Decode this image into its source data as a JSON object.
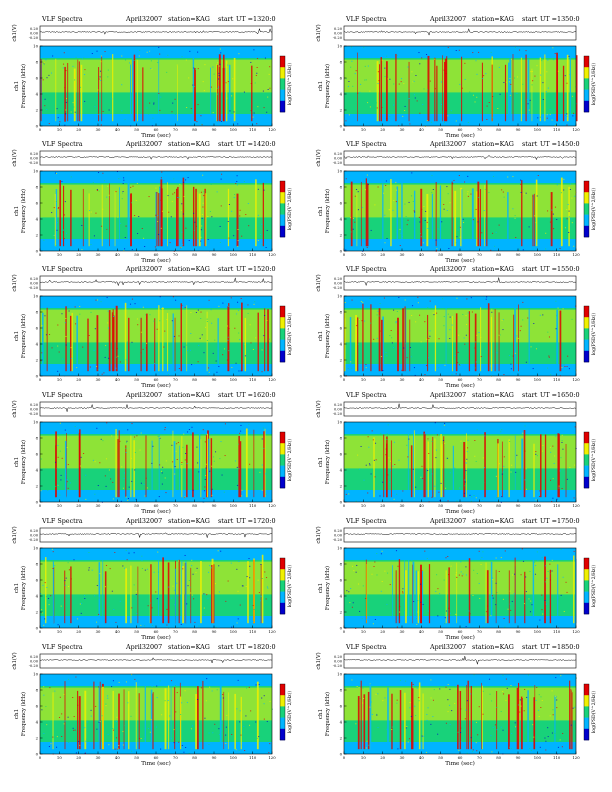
{
  "figure": {
    "colors": {
      "low": "#0000cc",
      "mid_low": "#00b4ff",
      "mid": "#18d27a",
      "mid_high": "#f0f000",
      "high": "#e00000",
      "wave_line": "#000000"
    }
  },
  "chart_data": [
    {
      "type": "heatmap",
      "title": "VLF Spectra",
      "date": "April32007",
      "station": "station=KAG",
      "start_label": "start",
      "ut": "UT =1320:0",
      "ylabel_top": "ch1(V)",
      "ylabel_main": "Frequency (kHz)",
      "ylabel_side": "ch1",
      "colorbar_label": "log(PSD(V^2/Hz))",
      "xlabel": "Time (sec)",
      "xlim": [
        0,
        120
      ],
      "ylim": [
        0,
        10
      ],
      "wave_yticks": [
        "0.20",
        "0.00",
        "-0.20"
      ],
      "x_ticks": [
        0,
        10,
        20,
        30,
        40,
        50,
        60,
        70,
        80,
        90,
        100,
        110,
        120
      ],
      "y_ticks": [
        0,
        2,
        4,
        6,
        8,
        10
      ]
    },
    {
      "type": "heatmap",
      "title": "VLF Spectra",
      "date": "April32007",
      "station": "station=KAG",
      "start_label": "start",
      "ut": "UT =1350:0",
      "ylabel_top": "ch1(V)",
      "ylabel_main": "Frequency (kHz)",
      "ylabel_side": "ch1",
      "colorbar_label": "log(PSD(V^2/Hz))",
      "xlabel": "Time (sec)",
      "xlim": [
        0,
        120
      ],
      "ylim": [
        0,
        10
      ],
      "wave_yticks": [
        "0.20",
        "0.00",
        "-0.20"
      ],
      "x_ticks": [
        0,
        10,
        20,
        30,
        40,
        50,
        60,
        70,
        80,
        90,
        100,
        110,
        120
      ],
      "y_ticks": [
        0,
        2,
        4,
        6,
        8,
        10
      ]
    },
    {
      "type": "heatmap",
      "title": "VLF Spectra",
      "date": "April32007",
      "station": "station=KAG",
      "start_label": "start",
      "ut": "UT =1420:0",
      "ylabel_top": "ch1(V)",
      "ylabel_main": "Frequency (kHz)",
      "ylabel_side": "ch1",
      "colorbar_label": "log(PSD(V^2/Hz))",
      "xlabel": "Time (sec)",
      "xlim": [
        0,
        120
      ],
      "ylim": [
        0,
        10
      ],
      "wave_yticks": [
        "0.20",
        "0.00",
        "-0.20"
      ],
      "x_ticks": [
        0,
        10,
        20,
        30,
        40,
        50,
        60,
        70,
        80,
        90,
        100,
        110,
        120
      ],
      "y_ticks": [
        0,
        2,
        4,
        6,
        8,
        10
      ]
    },
    {
      "type": "heatmap",
      "title": "VLF Spectra",
      "date": "April32007",
      "station": "station=KAG",
      "start_label": "start",
      "ut": "UT =1450:0",
      "ylabel_top": "ch1(V)",
      "ylabel_main": "Frequency (kHz)",
      "ylabel_side": "ch1",
      "colorbar_label": "log(PSD(V^2/Hz))",
      "xlabel": "Time (sec)",
      "xlim": [
        0,
        120
      ],
      "ylim": [
        0,
        10
      ],
      "wave_yticks": [
        "0.20",
        "0.00",
        "-0.20"
      ],
      "x_ticks": [
        0,
        10,
        20,
        30,
        40,
        50,
        60,
        70,
        80,
        90,
        100,
        110,
        120
      ],
      "y_ticks": [
        0,
        2,
        4,
        6,
        8,
        10
      ]
    },
    {
      "type": "heatmap",
      "title": "VLF Spectra",
      "date": "April32007",
      "station": "station=KAG",
      "start_label": "start",
      "ut": "UT =1520:0",
      "ylabel_top": "ch1(V)",
      "ylabel_main": "Frequency (kHz)",
      "ylabel_side": "ch1",
      "colorbar_label": "log(PSD(V^2/Hz))",
      "xlabel": "Time (sec)",
      "xlim": [
        0,
        120
      ],
      "ylim": [
        0,
        10
      ],
      "wave_yticks": [
        "0.20",
        "0.00",
        "-0.20"
      ],
      "x_ticks": [
        0,
        10,
        20,
        30,
        40,
        50,
        60,
        70,
        80,
        90,
        100,
        110,
        120
      ],
      "y_ticks": [
        0,
        2,
        4,
        6,
        8,
        10
      ]
    },
    {
      "type": "heatmap",
      "title": "VLF Spectra",
      "date": "April32007",
      "station": "station=KAG",
      "start_label": "start",
      "ut": "UT =1550:0",
      "ylabel_top": "ch1(V)",
      "ylabel_main": "Frequency (kHz)",
      "ylabel_side": "ch1",
      "colorbar_label": "log(PSD(V^2/Hz))",
      "xlabel": "Time (sec)",
      "xlim": [
        0,
        120
      ],
      "ylim": [
        0,
        10
      ],
      "wave_yticks": [
        "0.20",
        "0.00",
        "-0.20"
      ],
      "x_ticks": [
        0,
        10,
        20,
        30,
        40,
        50,
        60,
        70,
        80,
        90,
        100,
        110,
        120
      ],
      "y_ticks": [
        0,
        2,
        4,
        6,
        8,
        10
      ]
    },
    {
      "type": "heatmap",
      "title": "VLF Spectra",
      "date": "April32007",
      "station": "station=KAG",
      "start_label": "start",
      "ut": "UT =1620:0",
      "ylabel_top": "ch1(V)",
      "ylabel_main": "Frequency (kHz)",
      "ylabel_side": "ch1",
      "colorbar_label": "log(PSD(V^2/Hz))",
      "xlabel": "Time (sec)",
      "xlim": [
        0,
        120
      ],
      "ylim": [
        0,
        10
      ],
      "wave_yticks": [
        "0.20",
        "0.00",
        "-0.20"
      ],
      "x_ticks": [
        0,
        10,
        20,
        30,
        40,
        50,
        60,
        70,
        80,
        90,
        100,
        110,
        120
      ],
      "y_ticks": [
        0,
        2,
        4,
        6,
        8,
        10
      ]
    },
    {
      "type": "heatmap",
      "title": "VLF Spectra",
      "date": "April32007",
      "station": "station=KAG",
      "start_label": "start",
      "ut": "UT =1650:0",
      "ylabel_top": "ch1(V)",
      "ylabel_main": "Frequency (kHz)",
      "ylabel_side": "ch1",
      "colorbar_label": "log(PSD(V^2/Hz))",
      "xlabel": "Time (sec)",
      "xlim": [
        0,
        120
      ],
      "ylim": [
        0,
        10
      ],
      "wave_yticks": [
        "0.20",
        "0.00",
        "-0.20"
      ],
      "x_ticks": [
        0,
        10,
        20,
        30,
        40,
        50,
        60,
        70,
        80,
        90,
        100,
        110,
        120
      ],
      "y_ticks": [
        0,
        2,
        4,
        6,
        8,
        10
      ]
    },
    {
      "type": "heatmap",
      "title": "VLF Spectra",
      "date": "April32007",
      "station": "station=KAG",
      "start_label": "start",
      "ut": "UT =1720:0",
      "ylabel_top": "ch1(V)",
      "ylabel_main": "Frequency (kHz)",
      "ylabel_side": "ch1",
      "colorbar_label": "log(PSD(V^2/Hz))",
      "xlabel": "Time (sec)",
      "xlim": [
        0,
        120
      ],
      "ylim": [
        0,
        10
      ],
      "wave_yticks": [
        "0.20",
        "0.00",
        "-0.20"
      ],
      "x_ticks": [
        0,
        10,
        20,
        30,
        40,
        50,
        60,
        70,
        80,
        90,
        100,
        110,
        120
      ],
      "y_ticks": [
        0,
        2,
        4,
        6,
        8,
        10
      ]
    },
    {
      "type": "heatmap",
      "title": "VLF Spectra",
      "date": "April32007",
      "station": "station=KAG",
      "start_label": "start",
      "ut": "UT =1750:0",
      "ylabel_top": "ch1(V)",
      "ylabel_main": "Frequency (kHz)",
      "ylabel_side": "ch1",
      "colorbar_label": "log(PSD(V^2/Hz))",
      "xlabel": "Time (sec)",
      "xlim": [
        0,
        120
      ],
      "ylim": [
        0,
        10
      ],
      "wave_yticks": [
        "0.20",
        "0.00",
        "-0.20"
      ],
      "x_ticks": [
        0,
        10,
        20,
        30,
        40,
        50,
        60,
        70,
        80,
        90,
        100,
        110,
        120
      ],
      "y_ticks": [
        0,
        2,
        4,
        6,
        8,
        10
      ]
    },
    {
      "type": "heatmap",
      "title": "VLF Spectra",
      "date": "April32007",
      "station": "station=KAG",
      "start_label": "start",
      "ut": "UT =1820:0",
      "ylabel_top": "ch1(V)",
      "ylabel_main": "Frequency (kHz)",
      "ylabel_side": "ch1",
      "colorbar_label": "log(PSD(V^2/Hz))",
      "xlabel": "Time (sec)",
      "xlim": [
        0,
        120
      ],
      "ylim": [
        0,
        10
      ],
      "wave_yticks": [
        "0.20",
        "0.00",
        "-0.20"
      ],
      "x_ticks": [
        0,
        10,
        20,
        30,
        40,
        50,
        60,
        70,
        80,
        90,
        100,
        110,
        120
      ],
      "y_ticks": [
        0,
        2,
        4,
        6,
        8,
        10
      ]
    },
    {
      "type": "heatmap",
      "title": "VLF Spectra",
      "date": "April32007",
      "station": "station=KAG",
      "start_label": "start",
      "ut": "UT =1850:0",
      "ylabel_top": "ch1(V)",
      "ylabel_main": "Frequency (kHz)",
      "ylabel_side": "ch1",
      "colorbar_label": "log(PSD(V^2/Hz))",
      "xlabel": "Time (sec)",
      "xlim": [
        0,
        120
      ],
      "ylim": [
        0,
        10
      ],
      "wave_yticks": [
        "0.20",
        "0.00",
        "-0.20"
      ],
      "x_ticks": [
        0,
        10,
        20,
        30,
        40,
        50,
        60,
        70,
        80,
        90,
        100,
        110,
        120
      ],
      "y_ticks": [
        0,
        2,
        4,
        6,
        8,
        10
      ]
    }
  ]
}
